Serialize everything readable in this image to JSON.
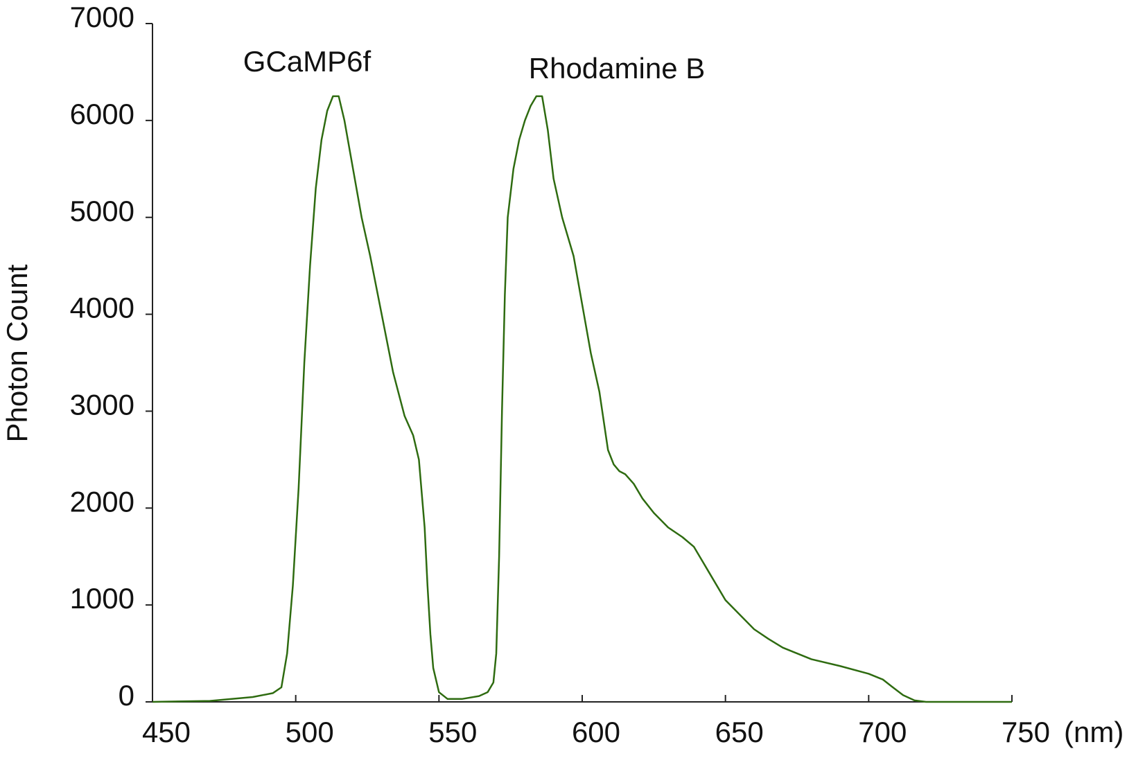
{
  "chart_data": {
    "type": "line",
    "xlabel": "(nm)",
    "ylabel": "Photon Count",
    "annotations": [
      "GCaMP6f",
      "Rhodamine B"
    ],
    "x": [
      450,
      470,
      485,
      492,
      495,
      497,
      499,
      501,
      503,
      505,
      507,
      509,
      511,
      513,
      515,
      517,
      520,
      523,
      526,
      530,
      534,
      538,
      541,
      543,
      545,
      546,
      547,
      548,
      550,
      553,
      558,
      564,
      567,
      569,
      570,
      571,
      572,
      573,
      574,
      576,
      578,
      580,
      582,
      584,
      586,
      588,
      590,
      593,
      597,
      600,
      603,
      606,
      609,
      611,
      613,
      615,
      618,
      621,
      625,
      630,
      635,
      639,
      645,
      650,
      655,
      660,
      665,
      670,
      675,
      680,
      690,
      700,
      705,
      708,
      712,
      716,
      720,
      750
    ],
    "series": [
      {
        "color": "#2e6b10",
        "values": [
          0,
          10,
          50,
          90,
          150,
          500,
          1200,
          2200,
          3500,
          4500,
          5300,
          5800,
          6100,
          6250,
          6250,
          6000,
          5500,
          5000,
          4600,
          4000,
          3400,
          2950,
          2750,
          2500,
          1800,
          1200,
          700,
          350,
          100,
          30,
          30,
          60,
          100,
          200,
          500,
          1500,
          3000,
          4200,
          5000,
          5500,
          5800,
          6000,
          6150,
          6250,
          6250,
          5900,
          5400,
          5000,
          4600,
          4100,
          3600,
          3200,
          2600,
          2450,
          2380,
          2350,
          2250,
          2100,
          1950,
          1800,
          1700,
          1600,
          1300,
          1050,
          900,
          750,
          650,
          560,
          500,
          440,
          370,
          290,
          230,
          160,
          70,
          15,
          0,
          0
        ]
      }
    ],
    "xlim": [
      450,
      750
    ],
    "xticks": [
      450,
      500,
      550,
      600,
      650,
      700,
      750
    ],
    "ylim": [
      0,
      7000
    ],
    "yticks": [
      0,
      1000,
      2000,
      3000,
      4000,
      5000,
      6000,
      7000
    ]
  }
}
